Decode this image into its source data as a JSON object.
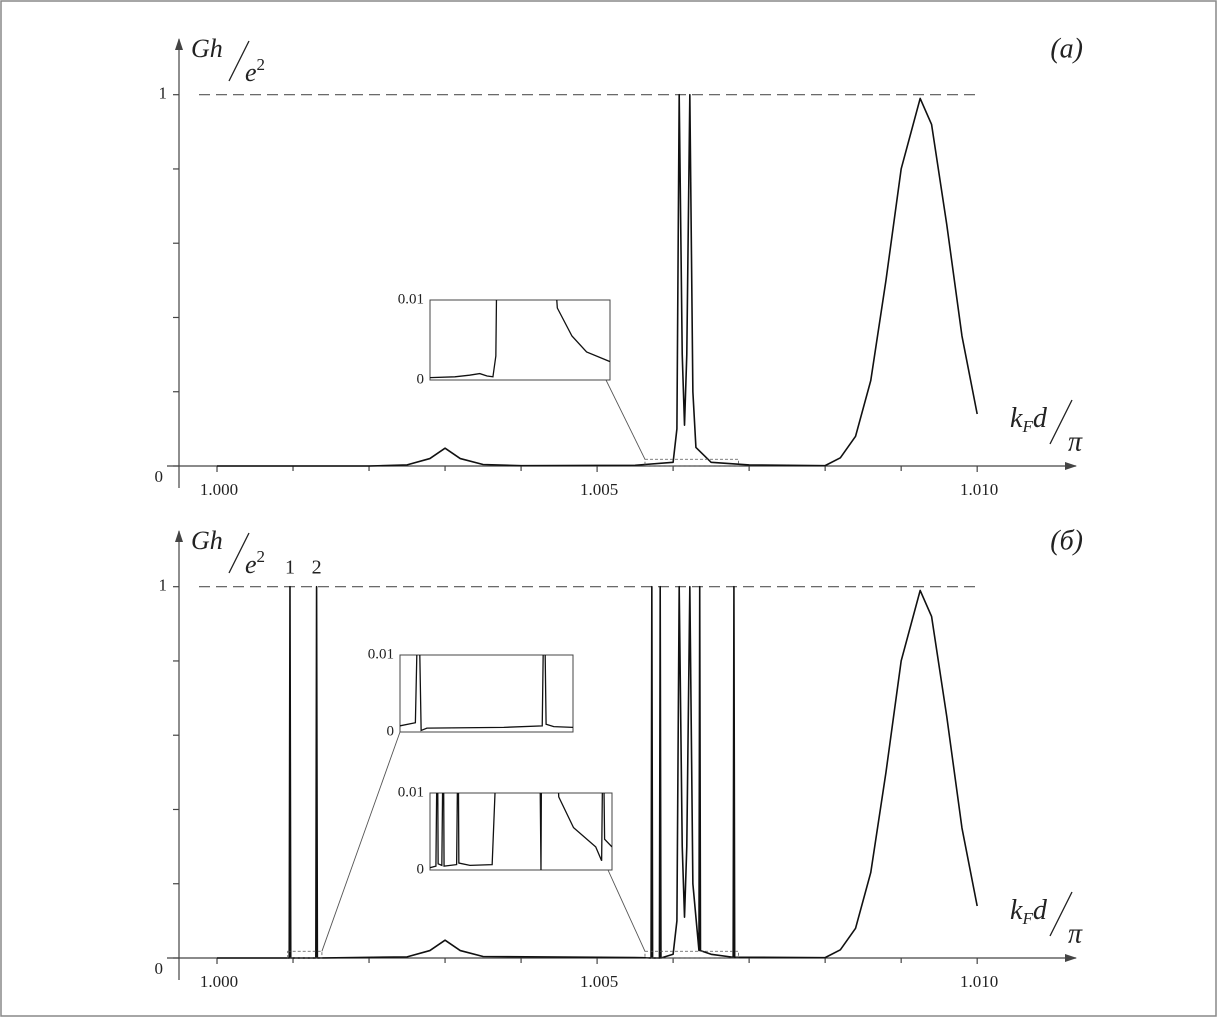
{
  "chart_data": [
    {
      "type": "line",
      "panel_label": "(a)",
      "y_label": {
        "numerator": "Gh",
        "denominator": "e",
        "exponent": "2"
      },
      "x_label": {
        "main": "k",
        "sub": "F",
        "rest": "d",
        "denominator": "π"
      },
      "xlim": [
        0.9995,
        1.0113
      ],
      "ylim": [
        0,
        1.15
      ],
      "xticks": [
        {
          "value": 1,
          "label": "1.000"
        },
        {
          "value": 1.005,
          "label": "1.005"
        },
        {
          "value": 1.01,
          "label": "1.010"
        }
      ],
      "xminor": [
        1.001,
        1.002,
        1.003,
        1.004,
        1.006,
        1.007,
        1.008,
        1.009
      ],
      "yticks": [
        0,
        1
      ],
      "yminor": [
        0.2,
        0.4,
        0.6,
        0.8
      ],
      "ref_line": 1,
      "color": "#111111",
      "x": [
        1.0,
        1.002,
        1.0025,
        1.0028,
        1.003,
        1.0032,
        1.0035,
        1.004,
        1.0055,
        1.006,
        1.00605,
        1.00608,
        1.00612,
        1.00615,
        1.00618,
        1.00622,
        1.00626,
        1.0063,
        1.0065,
        1.007,
        1.008,
        1.0082,
        1.0084,
        1.0086,
        1.0088,
        1.009,
        1.00925,
        1.0094,
        1.0096,
        1.0098,
        1.01
      ],
      "values": [
        0,
        0,
        0.003,
        0.02,
        0.048,
        0.02,
        0.004,
        0.001,
        0.002,
        0.01,
        0.1,
        1,
        0.3,
        0.11,
        0.3,
        1,
        0.2,
        0.05,
        0.01,
        0.003,
        0.001,
        0.022,
        0.08,
        0.23,
        0.5,
        0.8,
        0.99,
        0.92,
        0.65,
        0.35,
        0.14
      ],
      "insets": [
        {
          "xlim": [
            1.00563,
            1.00686
          ],
          "ylim": [
            0,
            0.01
          ],
          "yticks": [
            0,
            0.01
          ],
          "x": [
            1.00563,
            1.0058,
            1.0059,
            1.00597,
            1.00602,
            1.00606,
            1.00608,
            1.00609,
            1.00646,
            1.0065,
            1.0066,
            1.0067,
            1.00686
          ],
          "values": [
            0.0003,
            0.0004,
            0.0006,
            0.0008,
            0.0005,
            0.0004,
            0.003,
            0.02,
            0.02,
            0.009,
            0.0055,
            0.0035,
            0.0023
          ]
        }
      ]
    },
    {
      "type": "line",
      "panel_label": "(б)",
      "y_label": {
        "numerator": "Gh",
        "denominator": "e",
        "exponent": "2"
      },
      "x_label": {
        "main": "k",
        "sub": "F",
        "rest": "d",
        "denominator": "π"
      },
      "xlim": [
        0.9995,
        1.0113
      ],
      "ylim": [
        0,
        1.15
      ],
      "xticks": [
        {
          "value": 1,
          "label": "1.000"
        },
        {
          "value": 1.005,
          "label": "1.005"
        },
        {
          "value": 1.01,
          "label": "1.010"
        }
      ],
      "xminor": [
        1.001,
        1.002,
        1.003,
        1.004,
        1.006,
        1.007,
        1.008,
        1.009
      ],
      "yticks": [
        0,
        1
      ],
      "yminor": [
        0.2,
        0.4,
        0.6,
        0.8
      ],
      "ref_line": 1,
      "color": "#111111",
      "annotations": [
        {
          "text": "1",
          "x": 1.00096
        },
        {
          "text": "2",
          "x": 1.00131
        }
      ],
      "x": [
        1.0,
        1.00095,
        1.00096,
        1.00097,
        1.0013,
        1.00131,
        1.00132,
        1.0025,
        1.0028,
        1.003,
        1.0032,
        1.0035,
        1.0056,
        1.00571,
        1.00572,
        1.00573,
        1.00582,
        1.00583,
        1.00584,
        1.006,
        1.00605,
        1.00608,
        1.00612,
        1.00615,
        1.00618,
        1.00622,
        1.00626,
        1.00634,
        1.00635,
        1.00636,
        1.0065,
        1.00679,
        1.0068,
        1.00681,
        1.007,
        1.008,
        1.0082,
        1.0084,
        1.0086,
        1.0088,
        1.009,
        1.00925,
        1.0094,
        1.0096,
        1.0098,
        1.01
      ],
      "values": [
        0,
        0,
        1,
        0,
        0,
        1,
        0,
        0.003,
        0.02,
        0.048,
        0.02,
        0.004,
        0.001,
        0,
        1,
        0,
        0,
        1,
        0,
        0.01,
        0.1,
        1,
        0.3,
        0.11,
        0.3,
        1,
        0.2,
        0.02,
        1,
        0.02,
        0.01,
        0.002,
        1,
        0.002,
        0.002,
        0.001,
        0.022,
        0.08,
        0.23,
        0.5,
        0.8,
        0.99,
        0.92,
        0.65,
        0.35,
        0.14
      ],
      "insets": [
        {
          "xlim": [
            1.00093,
            1.00138
          ],
          "ylim": [
            0,
            0.01
          ],
          "yticks": [
            0,
            0.01
          ],
          "x": [
            1.00093,
            1.00097,
            1.000978,
            1.000985,
            1.001,
            1.0012,
            1.0013,
            1.001305,
            1.00131,
            1.00133,
            1.00138
          ],
          "values": [
            0.0008,
            0.0012,
            0.02,
            0.0002,
            0.0005,
            0.0006,
            0.0008,
            0.02,
            0.001,
            0.0007,
            0.0006
          ]
        },
        {
          "xlim": [
            1.00563,
            1.00686
          ],
          "ylim": [
            0,
            0.01
          ],
          "yticks": [
            0,
            0.01
          ],
          "x": [
            1.00563,
            1.00567,
            1.00568,
            1.005685,
            1.00571,
            1.00572,
            1.005725,
            1.00581,
            1.00582,
            1.005825,
            1.0059,
            1.00605,
            1.00609,
            1.00637,
            1.00638,
            1.006385,
            1.00648,
            1.0065,
            1.0066,
            1.00675,
            1.00679,
            1.0068,
            1.00681,
            1.00686
          ],
          "values": [
            0.0003,
            0.0005,
            0.02,
            0.0008,
            0.0006,
            0.02,
            0.0005,
            0.0007,
            0.02,
            0.0009,
            0.0006,
            0.0007,
            0.02,
            0.02,
            0,
            0.02,
            0.02,
            0.0095,
            0.0055,
            0.003,
            0.0012,
            0.02,
            0.004,
            0.003
          ]
        }
      ]
    }
  ]
}
